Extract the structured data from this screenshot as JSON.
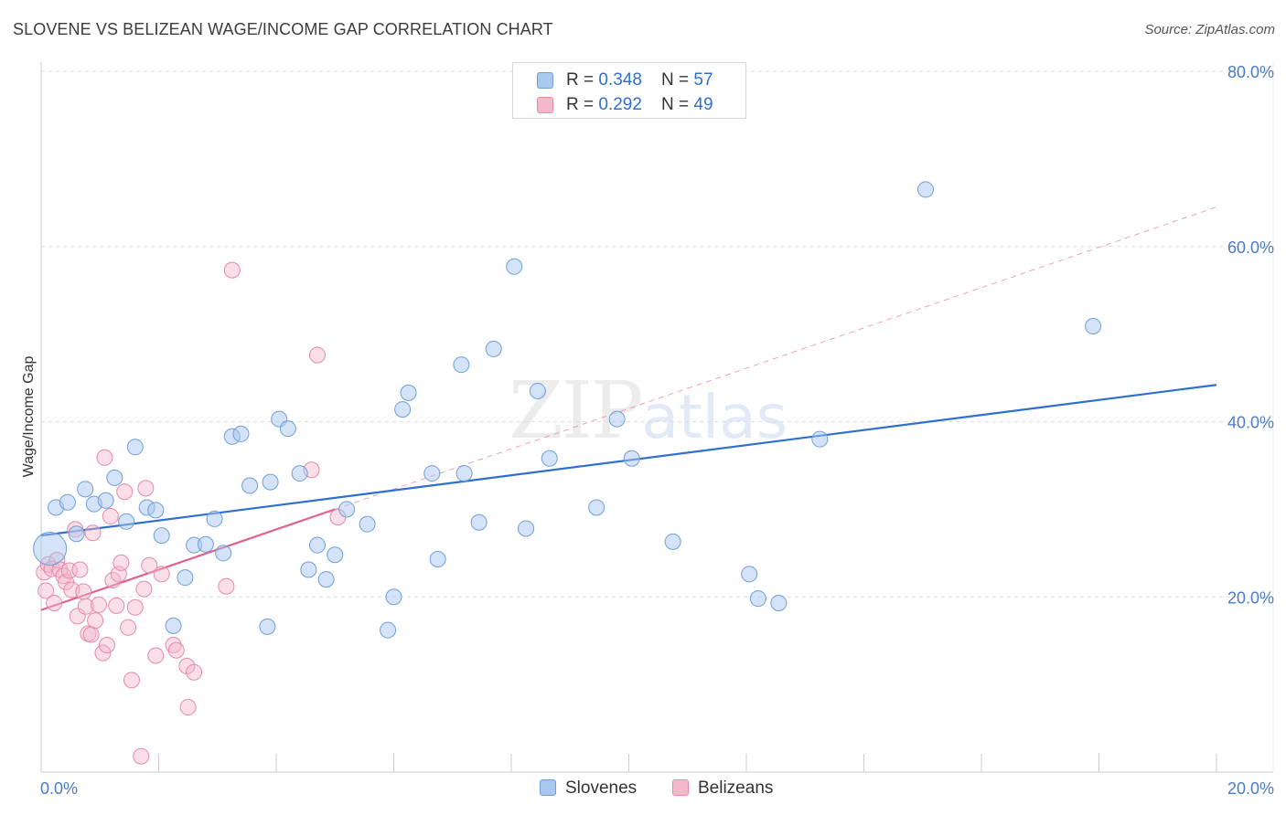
{
  "header": {
    "title": "SLOVENE VS BELIZEAN WAGE/INCOME GAP CORRELATION CHART",
    "source": "Source: ZipAtlas.com"
  },
  "watermark": {
    "zip": "ZIP",
    "atlas": "atlas"
  },
  "legend": {
    "rows": [
      {
        "r_label": "R = ",
        "r_value": "0.348",
        "n_label": "N = ",
        "n_value": "57"
      },
      {
        "r_label": "R = ",
        "r_value": "0.292",
        "n_label": "N = ",
        "n_value": "49"
      }
    ]
  },
  "bottom_legend": {
    "series1": "Slovenes",
    "series2": "Belizeans"
  },
  "colors": {
    "blue_fill": "#a9c8ef",
    "blue_stroke": "#6f9fd8",
    "blue_line": "#2f6fd0",
    "pink_fill": "#f5b8cb",
    "pink_stroke": "#e889a8",
    "pink_line": "#e0628c",
    "grid": "#dddddd",
    "tick_text": "#4a7cc9"
  },
  "chart_data": {
    "type": "scatter",
    "title": "SLOVENE VS BELIZEAN WAGE/INCOME GAP CORRELATION CHART",
    "xlabel": "",
    "ylabel": "Wage/Income Gap",
    "xlim": [
      0,
      20
    ],
    "ylim": [
      0,
      80
    ],
    "x_tick_labels": [
      "0.0%",
      "20.0%"
    ],
    "y_ticks": [
      20,
      40,
      60,
      80
    ],
    "y_tick_labels": [
      "20.0%",
      "40.0%",
      "60.0%",
      "80.0%"
    ],
    "grid": true,
    "legend_position": "top-center",
    "series": [
      {
        "name": "Slovenes",
        "r": 0.348,
        "n": 57,
        "trend": {
          "x": [
            0,
            20
          ],
          "y": [
            27.0,
            44.2
          ]
        },
        "points": [
          {
            "x": 0.15,
            "y": 25.5,
            "big": true
          },
          {
            "x": 0.25,
            "y": 30.2
          },
          {
            "x": 0.45,
            "y": 30.8
          },
          {
            "x": 0.6,
            "y": 27.2
          },
          {
            "x": 0.75,
            "y": 32.3
          },
          {
            "x": 0.9,
            "y": 30.6
          },
          {
            "x": 1.1,
            "y": 31.0
          },
          {
            "x": 1.25,
            "y": 33.6
          },
          {
            "x": 1.45,
            "y": 28.6
          },
          {
            "x": 1.6,
            "y": 37.1
          },
          {
            "x": 1.8,
            "y": 30.2
          },
          {
            "x": 1.95,
            "y": 29.9
          },
          {
            "x": 2.05,
            "y": 27.0
          },
          {
            "x": 2.25,
            "y": 16.7
          },
          {
            "x": 2.45,
            "y": 22.2
          },
          {
            "x": 2.6,
            "y": 25.9
          },
          {
            "x": 2.8,
            "y": 26.0
          },
          {
            "x": 2.95,
            "y": 28.9
          },
          {
            "x": 3.1,
            "y": 25.0
          },
          {
            "x": 3.25,
            "y": 38.3
          },
          {
            "x": 3.4,
            "y": 38.6
          },
          {
            "x": 3.55,
            "y": 32.7
          },
          {
            "x": 3.85,
            "y": 16.6
          },
          {
            "x": 3.9,
            "y": 33.1
          },
          {
            "x": 4.05,
            "y": 40.3
          },
          {
            "x": 4.2,
            "y": 39.2
          },
          {
            "x": 4.4,
            "y": 34.1
          },
          {
            "x": 4.55,
            "y": 23.1
          },
          {
            "x": 4.7,
            "y": 25.9
          },
          {
            "x": 4.85,
            "y": 22.0
          },
          {
            "x": 5.0,
            "y": 24.8
          },
          {
            "x": 5.2,
            "y": 30.0
          },
          {
            "x": 5.55,
            "y": 28.3
          },
          {
            "x": 5.9,
            "y": 16.2
          },
          {
            "x": 6.0,
            "y": 20.0
          },
          {
            "x": 6.15,
            "y": 41.4
          },
          {
            "x": 6.25,
            "y": 43.3
          },
          {
            "x": 6.65,
            "y": 34.1
          },
          {
            "x": 6.75,
            "y": 24.3
          },
          {
            "x": 7.15,
            "y": 46.5
          },
          {
            "x": 7.2,
            "y": 34.1
          },
          {
            "x": 7.45,
            "y": 28.5
          },
          {
            "x": 7.7,
            "y": 48.3
          },
          {
            "x": 8.05,
            "y": 57.7
          },
          {
            "x": 8.25,
            "y": 27.8
          },
          {
            "x": 8.45,
            "y": 43.5
          },
          {
            "x": 8.65,
            "y": 35.8
          },
          {
            "x": 9.45,
            "y": 30.2
          },
          {
            "x": 9.8,
            "y": 40.3
          },
          {
            "x": 10.05,
            "y": 35.8
          },
          {
            "x": 10.75,
            "y": 26.3
          },
          {
            "x": 12.05,
            "y": 22.6
          },
          {
            "x": 12.2,
            "y": 19.8
          },
          {
            "x": 12.55,
            "y": 19.3
          },
          {
            "x": 13.25,
            "y": 38.0
          },
          {
            "x": 15.05,
            "y": 66.5
          },
          {
            "x": 17.9,
            "y": 50.9
          }
        ]
      },
      {
        "name": "Belizeans",
        "r": 0.292,
        "n": 49,
        "trend": {
          "x": [
            0,
            5
          ],
          "y": [
            18.5,
            30.0
          ]
        },
        "trend_extension": {
          "x": [
            5,
            20
          ],
          "y": [
            30.0,
            64.5
          ]
        },
        "points": [
          {
            "x": 0.05,
            "y": 22.8
          },
          {
            "x": 0.08,
            "y": 20.7
          },
          {
            "x": 0.12,
            "y": 23.7
          },
          {
            "x": 0.18,
            "y": 23.2
          },
          {
            "x": 0.22,
            "y": 19.3
          },
          {
            "x": 0.27,
            "y": 24.2
          },
          {
            "x": 0.32,
            "y": 23.1
          },
          {
            "x": 0.38,
            "y": 22.4
          },
          {
            "x": 0.42,
            "y": 21.7
          },
          {
            "x": 0.48,
            "y": 23.0
          },
          {
            "x": 0.52,
            "y": 20.8
          },
          {
            "x": 0.58,
            "y": 27.7
          },
          {
            "x": 0.62,
            "y": 17.8
          },
          {
            "x": 0.66,
            "y": 23.1
          },
          {
            "x": 0.72,
            "y": 20.6
          },
          {
            "x": 0.76,
            "y": 18.9
          },
          {
            "x": 0.8,
            "y": 15.8
          },
          {
            "x": 0.85,
            "y": 15.7
          },
          {
            "x": 0.88,
            "y": 27.3
          },
          {
            "x": 0.92,
            "y": 17.3
          },
          {
            "x": 0.98,
            "y": 19.1
          },
          {
            "x": 1.05,
            "y": 13.6
          },
          {
            "x": 1.08,
            "y": 35.9
          },
          {
            "x": 1.12,
            "y": 14.5
          },
          {
            "x": 1.18,
            "y": 29.2
          },
          {
            "x": 1.22,
            "y": 21.9
          },
          {
            "x": 1.28,
            "y": 19.0
          },
          {
            "x": 1.32,
            "y": 22.6
          },
          {
            "x": 1.36,
            "y": 23.9
          },
          {
            "x": 1.42,
            "y": 32.0
          },
          {
            "x": 1.48,
            "y": 16.5
          },
          {
            "x": 1.54,
            "y": 10.5
          },
          {
            "x": 1.6,
            "y": 18.8
          },
          {
            "x": 1.7,
            "y": 1.8
          },
          {
            "x": 1.75,
            "y": 20.9
          },
          {
            "x": 1.78,
            "y": 32.4
          },
          {
            "x": 1.84,
            "y": 23.6
          },
          {
            "x": 1.95,
            "y": 13.3
          },
          {
            "x": 2.05,
            "y": 22.6
          },
          {
            "x": 2.25,
            "y": 14.5
          },
          {
            "x": 2.3,
            "y": 13.9
          },
          {
            "x": 2.48,
            "y": 12.1
          },
          {
            "x": 2.5,
            "y": 7.4
          },
          {
            "x": 2.6,
            "y": 11.4
          },
          {
            "x": 3.15,
            "y": 21.2
          },
          {
            "x": 3.25,
            "y": 57.3
          },
          {
            "x": 4.6,
            "y": 34.5
          },
          {
            "x": 4.7,
            "y": 47.6
          },
          {
            "x": 5.05,
            "y": 29.1
          }
        ]
      }
    ]
  }
}
